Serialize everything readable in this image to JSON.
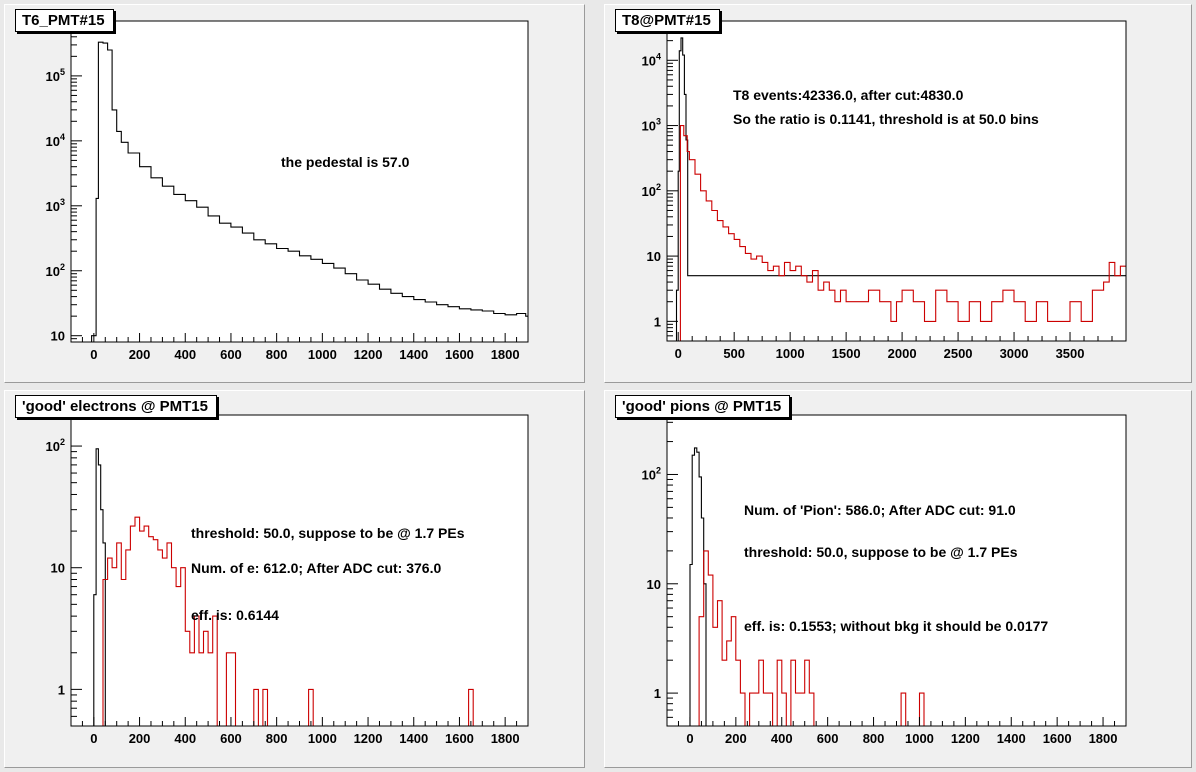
{
  "canvas": {
    "background": "#e9e9e9",
    "pad_background": "#f0f0f0"
  },
  "colors": {
    "black_series": "#000000",
    "red_series": "#cc0000"
  },
  "chart_data": [
    {
      "id": "t6",
      "type": "line",
      "title": "T6_PMT#15",
      "xlim": [
        -100,
        1900
      ],
      "ylim": [
        8,
        700000
      ],
      "yscale": "log",
      "xticks": [
        0,
        200,
        400,
        600,
        800,
        1000,
        1200,
        1400,
        1600,
        1800
      ],
      "yticks": [
        {
          "v": 10,
          "label": "10",
          "sup": ""
        },
        {
          "v": 100,
          "label": "10",
          "sup": "2"
        },
        {
          "v": 1000,
          "label": "10",
          "sup": "3"
        },
        {
          "v": 10000,
          "label": "10",
          "sup": "4"
        },
        {
          "v": 100000,
          "label": "10",
          "sup": "5"
        }
      ],
      "annotations": [
        "the pedestal is 57.0"
      ],
      "series": [
        {
          "color": "#000000",
          "x": [
            -10,
            0,
            10,
            20,
            40,
            60,
            80,
            100,
            120,
            150,
            200,
            250,
            300,
            350,
            400,
            450,
            500,
            550,
            600,
            650,
            700,
            750,
            800,
            850,
            900,
            950,
            1000,
            1050,
            1100,
            1150,
            1200,
            1250,
            1300,
            1350,
            1400,
            1450,
            1500,
            1550,
            1600,
            1650,
            1700,
            1750,
            1800,
            1850,
            1890
          ],
          "y": [
            10,
            10,
            1300,
            330000,
            320000,
            250000,
            30000,
            14000,
            9500,
            6500,
            4000,
            2700,
            2000,
            1500,
            1200,
            950,
            700,
            540,
            470,
            380,
            300,
            260,
            220,
            200,
            170,
            150,
            130,
            110,
            90,
            72,
            62,
            52,
            45,
            40,
            36,
            33,
            30,
            28,
            26,
            25,
            24,
            22,
            21,
            22,
            20
          ]
        }
      ]
    },
    {
      "id": "t8",
      "type": "line",
      "title": "T8@PMT#15",
      "xlim": [
        -100,
        4000
      ],
      "ylim": [
        0.5,
        40000
      ],
      "yscale": "log",
      "xticks": [
        0,
        500,
        1000,
        1500,
        2000,
        2500,
        3000,
        3500
      ],
      "yticks": [
        {
          "v": 1,
          "label": "1",
          "sup": ""
        },
        {
          "v": 10,
          "label": "10",
          "sup": ""
        },
        {
          "v": 100,
          "label": "10",
          "sup": "2"
        },
        {
          "v": 1000,
          "label": "10",
          "sup": "3"
        },
        {
          "v": 10000,
          "label": "10",
          "sup": "4"
        }
      ],
      "annotations": [
        "T8 events:42336.0,  after cut:4830.0",
        "So the ratio is 0.1141, threshold is at 50.0 bins"
      ],
      "series": [
        {
          "color": "#000000",
          "x": [
            -15,
            0,
            10,
            25,
            40,
            55,
            70,
            85
          ],
          "y": [
            3,
            200,
            14000,
            22000,
            12000,
            3000,
            600,
            5
          ]
        },
        {
          "color": "#cc0000",
          "x": [
            20,
            50,
            80,
            100,
            150,
            200,
            250,
            300,
            350,
            400,
            450,
            500,
            550,
            600,
            650,
            700,
            750,
            800,
            850,
            900,
            950,
            1000,
            1050,
            1100,
            1150,
            1200,
            1250,
            1300,
            1350,
            1400,
            1450,
            1500,
            1600,
            1700,
            1800,
            1900,
            1950,
            2000,
            2100,
            2200,
            2300,
            2400,
            2500,
            2600,
            2700,
            2800,
            2900,
            3000,
            3100,
            3200,
            3300,
            3400,
            3500,
            3600,
            3700,
            3800,
            3850,
            3900,
            3950
          ],
          "y": [
            1000,
            700,
            400,
            300,
            180,
            100,
            70,
            50,
            35,
            28,
            22,
            18,
            14,
            11,
            9,
            10,
            8,
            6,
            7,
            5,
            8,
            6,
            7,
            5,
            4,
            6,
            3,
            4,
            3,
            2,
            3,
            2,
            2,
            3,
            2,
            1,
            2,
            3,
            2,
            1,
            3,
            2,
            1,
            2,
            1,
            2,
            3,
            2,
            1,
            2,
            1,
            1,
            2,
            1,
            3,
            4,
            8,
            5,
            7
          ]
        }
      ]
    },
    {
      "id": "electrons",
      "type": "line",
      "title": "'good' electrons @ PMT15",
      "xlim": [
        -100,
        1900
      ],
      "ylim": [
        0.5,
        180
      ],
      "yscale": "log",
      "xticks": [
        0,
        200,
        400,
        600,
        800,
        1000,
        1200,
        1400,
        1600,
        1800
      ],
      "yticks": [
        {
          "v": 1,
          "label": "1",
          "sup": ""
        },
        {
          "v": 10,
          "label": "10",
          "sup": ""
        },
        {
          "v": 100,
          "label": "10",
          "sup": "2"
        }
      ],
      "annotations": [
        "threshold: 50.0, suppose to be @ 1.7 PEs",
        "Num. of e:  612.0;  After ADC cut: 376.0",
        "eff. is: 0.6144"
      ],
      "series": [
        {
          "color": "#000000",
          "x": [
            -10,
            0,
            10,
            20,
            30,
            40,
            50
          ],
          "y": [
            0.5,
            6,
            95,
            70,
            30,
            16,
            0.5
          ]
        },
        {
          "color": "#cc0000",
          "x": [
            40,
            60,
            80,
            100,
            120,
            140,
            160,
            180,
            200,
            220,
            240,
            260,
            280,
            300,
            320,
            340,
            360,
            380,
            400,
            420,
            440,
            460,
            480,
            500,
            520,
            540,
            560,
            580,
            600,
            620,
            640,
            660,
            680,
            700,
            720,
            740,
            760,
            780,
            800,
            820,
            840,
            860,
            880,
            900,
            920,
            940,
            960,
            980,
            1000,
            1200,
            1400,
            1600,
            1640,
            1660,
            1700,
            1860
          ],
          "y": [
            8,
            12,
            10,
            16,
            8,
            14,
            22,
            26,
            20,
            22,
            18,
            17,
            14,
            12,
            16,
            10,
            7,
            10,
            3,
            2,
            4,
            2,
            3,
            2,
            4,
            0.5,
            0.5,
            2,
            2,
            0.5,
            0.5,
            0.5,
            0.5,
            1,
            0.5,
            1,
            0.5,
            0.5,
            0.5,
            0.5,
            0.5,
            0.5,
            0.5,
            0.5,
            0.5,
            1,
            0.5,
            0.5,
            0.5,
            0.5,
            0.5,
            0.5,
            1,
            0.5,
            0.5,
            0.5
          ]
        }
      ]
    },
    {
      "id": "pions",
      "type": "line",
      "title": "'good' pions @ PMT15",
      "xlim": [
        -100,
        1900
      ],
      "ylim": [
        0.5,
        350
      ],
      "yscale": "log",
      "xticks": [
        0,
        200,
        400,
        600,
        800,
        1000,
        1200,
        1400,
        1600,
        1800
      ],
      "yticks": [
        {
          "v": 1,
          "label": "1",
          "sup": ""
        },
        {
          "v": 10,
          "label": "10",
          "sup": ""
        },
        {
          "v": 100,
          "label": "10",
          "sup": "2"
        }
      ],
      "annotations": [
        "Num. of 'Pion':  586.0;  After ADC cut:  91.0",
        "threshold: 50.0, suppose to be @ 1.7 PEs",
        "eff. is: 0.1553;  without bkg it should be 0.0177"
      ],
      "series": [
        {
          "color": "#000000",
          "x": [
            -10,
            0,
            10,
            20,
            30,
            40,
            50,
            60,
            70
          ],
          "y": [
            0.5,
            15,
            150,
            175,
            160,
            95,
            40,
            10,
            0.5
          ]
        },
        {
          "color": "#cc0000",
          "x": [
            40,
            60,
            80,
            100,
            120,
            140,
            160,
            180,
            200,
            220,
            240,
            260,
            280,
            300,
            320,
            340,
            360,
            380,
            400,
            420,
            440,
            460,
            480,
            500,
            520,
            540,
            560,
            600,
            700,
            800,
            900,
            920,
            940,
            960,
            980,
            1000,
            1020,
            1040,
            1060,
            1860
          ],
          "y": [
            5,
            20,
            12,
            4,
            7,
            2,
            3,
            5,
            2,
            1,
            0.5,
            1,
            1,
            2,
            1,
            1,
            0.5,
            2,
            1,
            0.5,
            2,
            1,
            1,
            2,
            1,
            0.5,
            0.5,
            0.5,
            0.5,
            0.5,
            0.5,
            1,
            0.5,
            0.5,
            0.5,
            1,
            0.5,
            0.5,
            0.5,
            0.5
          ]
        }
      ]
    }
  ]
}
